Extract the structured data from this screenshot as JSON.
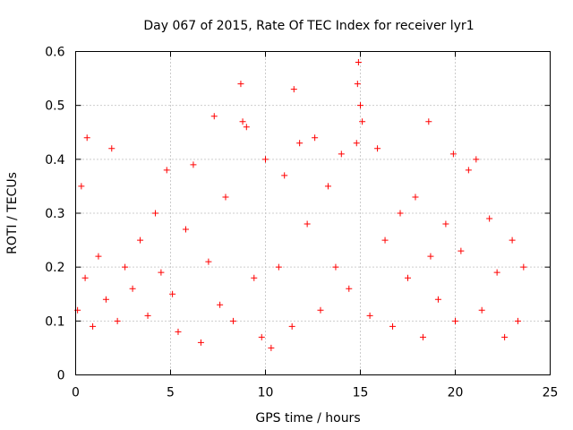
{
  "chart_data": {
    "type": "scatter",
    "title": "Day 067 of 2015, Rate Of TEC Index for receiver lyr1",
    "xlabel": "GPS time / hours",
    "ylabel": "ROTI / TECUs",
    "xlim": [
      0,
      25
    ],
    "ylim": [
      0,
      0.6
    ],
    "xticks": [
      0,
      5,
      10,
      15,
      20,
      25
    ],
    "xtick_labels": [
      "0",
      "5",
      "10",
      "15",
      "20",
      "25"
    ],
    "yticks": [
      0,
      0.1,
      0.2,
      0.3,
      0.4,
      0.5,
      0.6
    ],
    "ytick_labels": [
      "0",
      "0.1",
      "0.2",
      "0.3",
      "0.4",
      "0.5",
      "0.6"
    ],
    "grid": true,
    "marker": "+",
    "color": "#ff0000",
    "series": [
      {
        "name": "lyr1",
        "x": [
          0.1,
          0.3,
          0.5,
          0.6,
          0.9,
          1.2,
          1.6,
          1.9,
          2.2,
          2.6,
          3.0,
          3.4,
          3.8,
          4.2,
          4.5,
          4.8,
          5.1,
          5.4,
          5.8,
          6.2,
          6.6,
          7.0,
          7.3,
          7.6,
          7.9,
          8.3,
          8.7,
          8.8,
          9.0,
          9.4,
          9.8,
          10.0,
          10.3,
          10.7,
          11.0,
          11.4,
          11.5,
          11.8,
          12.2,
          12.6,
          12.9,
          13.3,
          13.7,
          14.0,
          14.4,
          14.8,
          14.85,
          14.9,
          15.0,
          15.1,
          15.5,
          15.9,
          16.3,
          16.7,
          17.1,
          17.5,
          17.9,
          18.3,
          18.6,
          18.7,
          19.1,
          19.5,
          19.9,
          20.0,
          20.3,
          20.7,
          21.1,
          21.4,
          21.8,
          22.2,
          22.6,
          23.0,
          23.3,
          23.6
        ],
        "y": [
          0.12,
          0.35,
          0.18,
          0.44,
          0.09,
          0.22,
          0.14,
          0.42,
          0.1,
          0.2,
          0.16,
          0.25,
          0.11,
          0.3,
          0.19,
          0.38,
          0.15,
          0.08,
          0.27,
          0.39,
          0.06,
          0.21,
          0.48,
          0.13,
          0.33,
          0.1,
          0.54,
          0.47,
          0.46,
          0.18,
          0.07,
          0.4,
          0.05,
          0.2,
          0.37,
          0.09,
          0.53,
          0.43,
          0.28,
          0.44,
          0.12,
          0.35,
          0.2,
          0.41,
          0.16,
          0.43,
          0.54,
          0.58,
          0.5,
          0.47,
          0.11,
          0.42,
          0.25,
          0.09,
          0.3,
          0.18,
          0.33,
          0.07,
          0.47,
          0.22,
          0.14,
          0.28,
          0.41,
          0.1,
          0.23,
          0.38,
          0.4,
          0.12,
          0.29,
          0.19,
          0.07,
          0.25,
          0.1,
          0.2
        ]
      }
    ]
  }
}
